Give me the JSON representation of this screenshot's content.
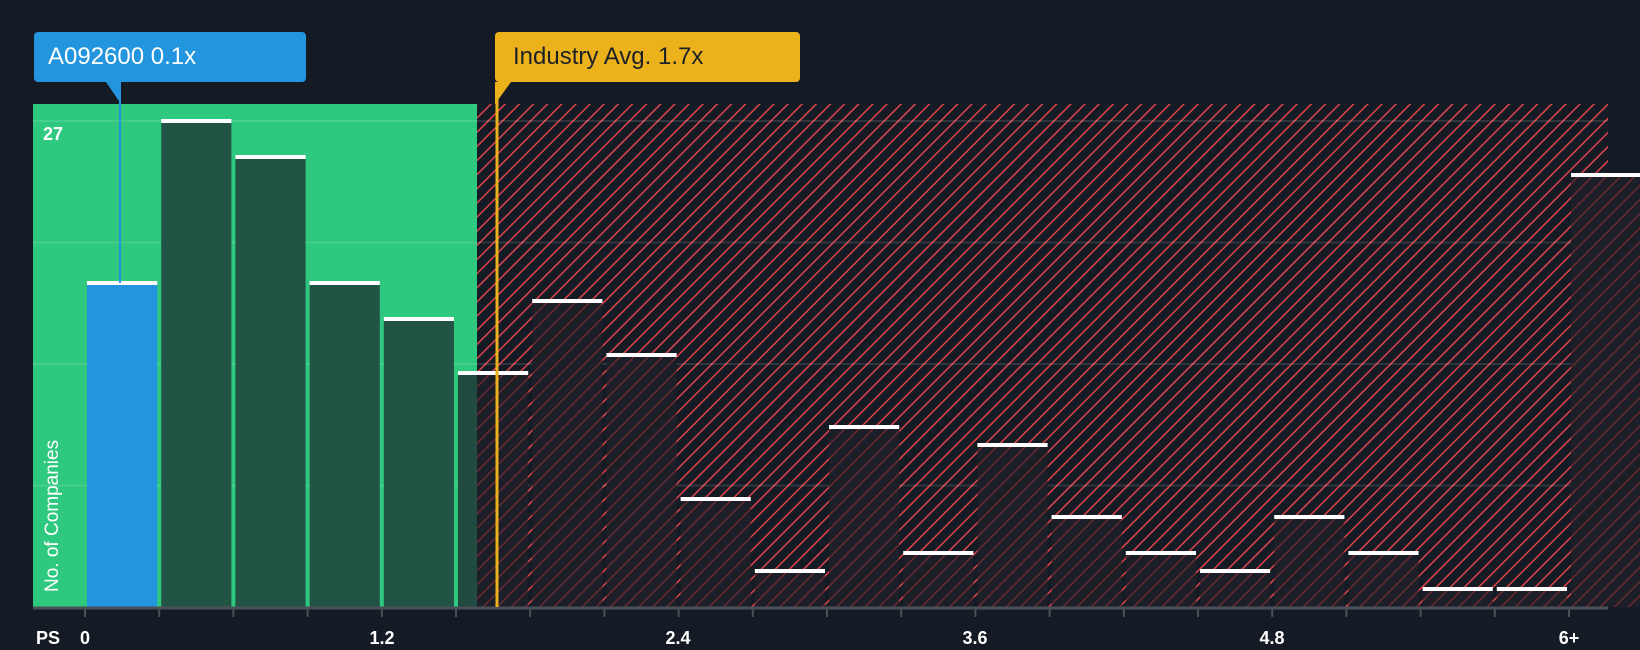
{
  "tooltips": {
    "company": "A092600 0.1x",
    "industry": "Industry Avg. 1.7x"
  },
  "axis": {
    "y_title": "No. of Companies",
    "y_max_label": "27",
    "x_title": "PS",
    "x_ticks": [
      "0",
      "1.2",
      "2.4",
      "3.6",
      "4.8",
      "6+"
    ]
  },
  "colors": {
    "background": "#151b24",
    "fair_zone": "#2ec97f",
    "company_bar": "#2394de",
    "green_bar": "#214a40",
    "overvalued_hatch": "#e0444a",
    "dark_bar": "#1c1f28",
    "industry_line": "#ecb21b",
    "bar_cap": "#ffffff"
  },
  "chart_data": {
    "type": "bar",
    "title": "",
    "xlabel": "PS",
    "ylabel": "No. of Companies",
    "categories": [
      "0-0.3",
      "0.3-0.6",
      "0.6-0.9",
      "0.9-1.2",
      "1.2-1.5",
      "1.5-1.8",
      "1.8-2.1",
      "2.1-2.4",
      "2.4-2.7",
      "2.7-3.0",
      "3.0-3.3",
      "3.3-3.6",
      "3.6-3.9",
      "3.9-4.2",
      "4.2-4.5",
      "4.5-4.8",
      "4.8-5.1",
      "5.1-5.4",
      "5.4-5.7",
      "5.7-6.0",
      "6+"
    ],
    "values": [
      18,
      27,
      25,
      18,
      16,
      13,
      17,
      14,
      6,
      2,
      10,
      3,
      9,
      5,
      3,
      2,
      5,
      3,
      1,
      1,
      24
    ],
    "highlight_index": 0,
    "company_value": 0.1,
    "industry_avg": 1.7,
    "fair_zone_max": 1.65,
    "ylim": [
      0,
      28
    ],
    "x_tick_labels": [
      "0",
      "1.2",
      "2.4",
      "3.6",
      "4.8",
      "6+"
    ],
    "y_tick_labels": [
      "27"
    ],
    "grid": true,
    "legend": []
  }
}
